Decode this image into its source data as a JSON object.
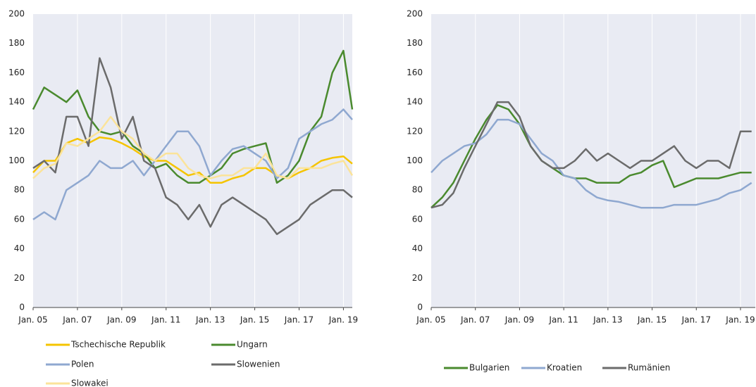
{
  "chart_data": [
    {
      "type": "line",
      "legend": "bottom",
      "grid": true,
      "x": [
        2005,
        2005.5,
        2006,
        2006.5,
        2007,
        2007.5,
        2008,
        2008.5,
        2009,
        2009.5,
        2010,
        2010.5,
        2011,
        2011.5,
        2012,
        2012.5,
        2013,
        2013.5,
        2014,
        2014.5,
        2015,
        2015.5,
        2016,
        2016.5,
        2017,
        2017.5,
        2018,
        2018.5,
        2019,
        2019.4
      ],
      "xlim": [
        2005,
        2019.4
      ],
      "xticks": [
        {
          "value": 2005,
          "label": "Jan. 05"
        },
        {
          "value": 2007,
          "label": "Jan. 07"
        },
        {
          "value": 2009,
          "label": "Jan. 09"
        },
        {
          "value": 2011,
          "label": "Jan. 11"
        },
        {
          "value": 2013,
          "label": "Jan. 13"
        },
        {
          "value": 2015,
          "label": "Jan. 15"
        },
        {
          "value": 2017,
          "label": "Jan. 17"
        },
        {
          "value": 2019,
          "label": "Jan. 19"
        }
      ],
      "ylim": [
        0,
        200
      ],
      "yticks": [
        0,
        20,
        40,
        60,
        80,
        100,
        120,
        140,
        160,
        180,
        200
      ],
      "series": [
        {
          "name": "Tschechische Republik",
          "color": "#f5c400",
          "values": [
            92,
            100,
            100,
            112,
            115,
            112,
            116,
            115,
            112,
            108,
            103,
            100,
            100,
            95,
            90,
            92,
            85,
            85,
            88,
            90,
            95,
            95,
            90,
            88,
            92,
            95,
            100,
            102,
            103,
            98
          ]
        },
        {
          "name": "Ungarn",
          "color": "#4a8a2e",
          "values": [
            135,
            150,
            145,
            140,
            148,
            130,
            120,
            118,
            120,
            110,
            105,
            95,
            98,
            90,
            85,
            85,
            90,
            95,
            105,
            108,
            110,
            112,
            85,
            90,
            100,
            120,
            130,
            160,
            175,
            135
          ]
        },
        {
          "name": "Polen",
          "color": "#8fa8d0",
          "values": [
            60,
            65,
            60,
            80,
            85,
            90,
            100,
            95,
            95,
            100,
            90,
            100,
            110,
            120,
            120,
            110,
            90,
            100,
            108,
            110,
            105,
            100,
            88,
            95,
            115,
            120,
            125,
            128,
            135,
            128
          ]
        },
        {
          "name": "Slowenien",
          "color": "#6b6b6b",
          "values": [
            95,
            100,
            92,
            130,
            130,
            110,
            170,
            150,
            115,
            130,
            100,
            95,
            75,
            70,
            60,
            70,
            55,
            70,
            75,
            70,
            65,
            60,
            50,
            55,
            60,
            70,
            75,
            80,
            80,
            75
          ]
        },
        {
          "name": "Slowakei",
          "color": "#fbe39a",
          "values": [
            88,
            95,
            98,
            112,
            110,
            115,
            120,
            130,
            120,
            115,
            105,
            100,
            105,
            105,
            95,
            90,
            88,
            90,
            90,
            95,
            95,
            105,
            90,
            88,
            95,
            95,
            95,
            98,
            100,
            90
          ]
        }
      ]
    },
    {
      "type": "line",
      "legend": "bottom",
      "grid": true,
      "x": [
        2005,
        2005.5,
        2006,
        2006.5,
        2007,
        2007.5,
        2008,
        2008.5,
        2009,
        2009.5,
        2010,
        2010.5,
        2011,
        2011.5,
        2012,
        2012.5,
        2013,
        2013.5,
        2014,
        2014.5,
        2015,
        2015.5,
        2016,
        2016.5,
        2017,
        2017.5,
        2018,
        2018.5,
        2019,
        2019.5
      ],
      "xlim": [
        2005,
        2019.67
      ],
      "xticks": [
        {
          "value": 2005,
          "label": "Jan. 05"
        },
        {
          "value": 2007,
          "label": "Jan. 07"
        },
        {
          "value": 2009,
          "label": "Jan. 09"
        },
        {
          "value": 2011,
          "label": "Jan. 11"
        },
        {
          "value": 2013,
          "label": "Jan. 13"
        },
        {
          "value": 2015,
          "label": "Jan. 15"
        },
        {
          "value": 2017,
          "label": "Jan. 17"
        },
        {
          "value": 2019,
          "label": "Jan. 19"
        }
      ],
      "ylim": [
        0,
        200
      ],
      "yticks": [
        0,
        20,
        40,
        60,
        80,
        100,
        120,
        140,
        160,
        180,
        200
      ],
      "series": [
        {
          "name": "Bulgarien",
          "color": "#4a8a2e",
          "values": [
            68,
            75,
            85,
            100,
            115,
            128,
            138,
            135,
            125,
            110,
            100,
            95,
            90,
            88,
            88,
            85,
            85,
            85,
            90,
            92,
            97,
            100,
            82,
            85,
            88,
            88,
            88,
            90,
            92,
            92
          ]
        },
        {
          "name": "Kroatien",
          "color": "#8fa8d0",
          "values": [
            92,
            100,
            105,
            110,
            112,
            118,
            128,
            128,
            125,
            115,
            105,
            100,
            90,
            88,
            80,
            75,
            73,
            72,
            70,
            68,
            68,
            68,
            70,
            70,
            70,
            72,
            74,
            78,
            80,
            85
          ]
        },
        {
          "name": "Rumänien",
          "color": "#6b6b6b",
          "values": [
            68,
            70,
            78,
            95,
            110,
            125,
            140,
            140,
            130,
            110,
            100,
            95,
            95,
            100,
            108,
            100,
            105,
            100,
            95,
            100,
            100,
            105,
            110,
            100,
            95,
            100,
            100,
            95,
            120,
            120
          ]
        }
      ]
    }
  ]
}
